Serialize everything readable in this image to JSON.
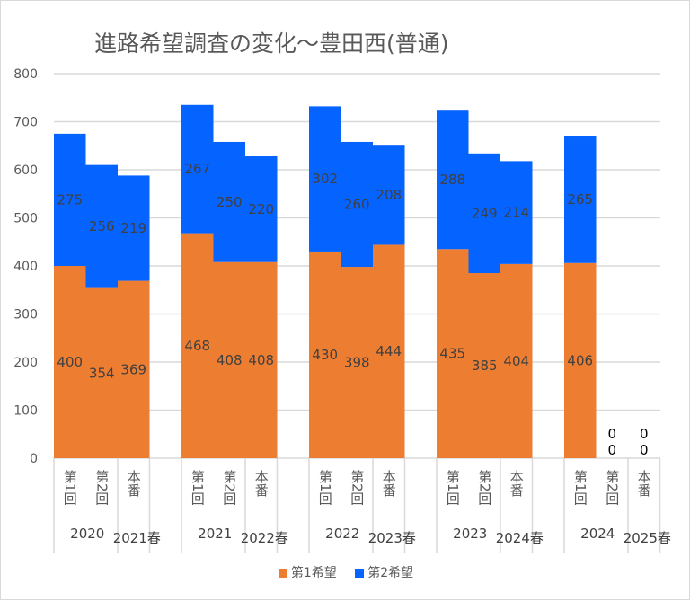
{
  "chart_data": {
    "type": "bar",
    "stacked": true,
    "title": "進路希望調査の変化～豊田西(普通)",
    "xlabel": "",
    "ylabel": "",
    "ylim": [
      0,
      800
    ],
    "yticks": [
      0,
      100,
      200,
      300,
      400,
      500,
      600,
      700,
      800
    ],
    "grid": true,
    "legend_position": "bottom",
    "groups": [
      {
        "year": "2020",
        "exam": "2021春",
        "categories": [
          "第1回",
          "第2回",
          "本番"
        ]
      },
      {
        "year": "2021",
        "exam": "2022春",
        "categories": [
          "第1回",
          "第2回",
          "本番"
        ]
      },
      {
        "year": "2022",
        "exam": "2023春",
        "categories": [
          "第1回",
          "第2回",
          "本番"
        ]
      },
      {
        "year": "2023",
        "exam": "2024春",
        "categories": [
          "第1回",
          "第2回",
          "本番"
        ]
      },
      {
        "year": "2024",
        "exam": "2025春",
        "categories": [
          "第1回",
          "第2回",
          "本番"
        ]
      }
    ],
    "series": [
      {
        "name": "第1希望",
        "color": "#ED7D31",
        "values": [
          [
            400,
            354,
            369
          ],
          [
            468,
            408,
            408
          ],
          [
            430,
            398,
            444
          ],
          [
            435,
            385,
            404
          ],
          [
            406,
            0,
            0
          ]
        ]
      },
      {
        "name": "第2希望",
        "color": "#0563FF",
        "values": [
          [
            275,
            256,
            219
          ],
          [
            267,
            250,
            220
          ],
          [
            302,
            260,
            208
          ],
          [
            288,
            249,
            214
          ],
          [
            265,
            0,
            0
          ]
        ]
      }
    ]
  }
}
